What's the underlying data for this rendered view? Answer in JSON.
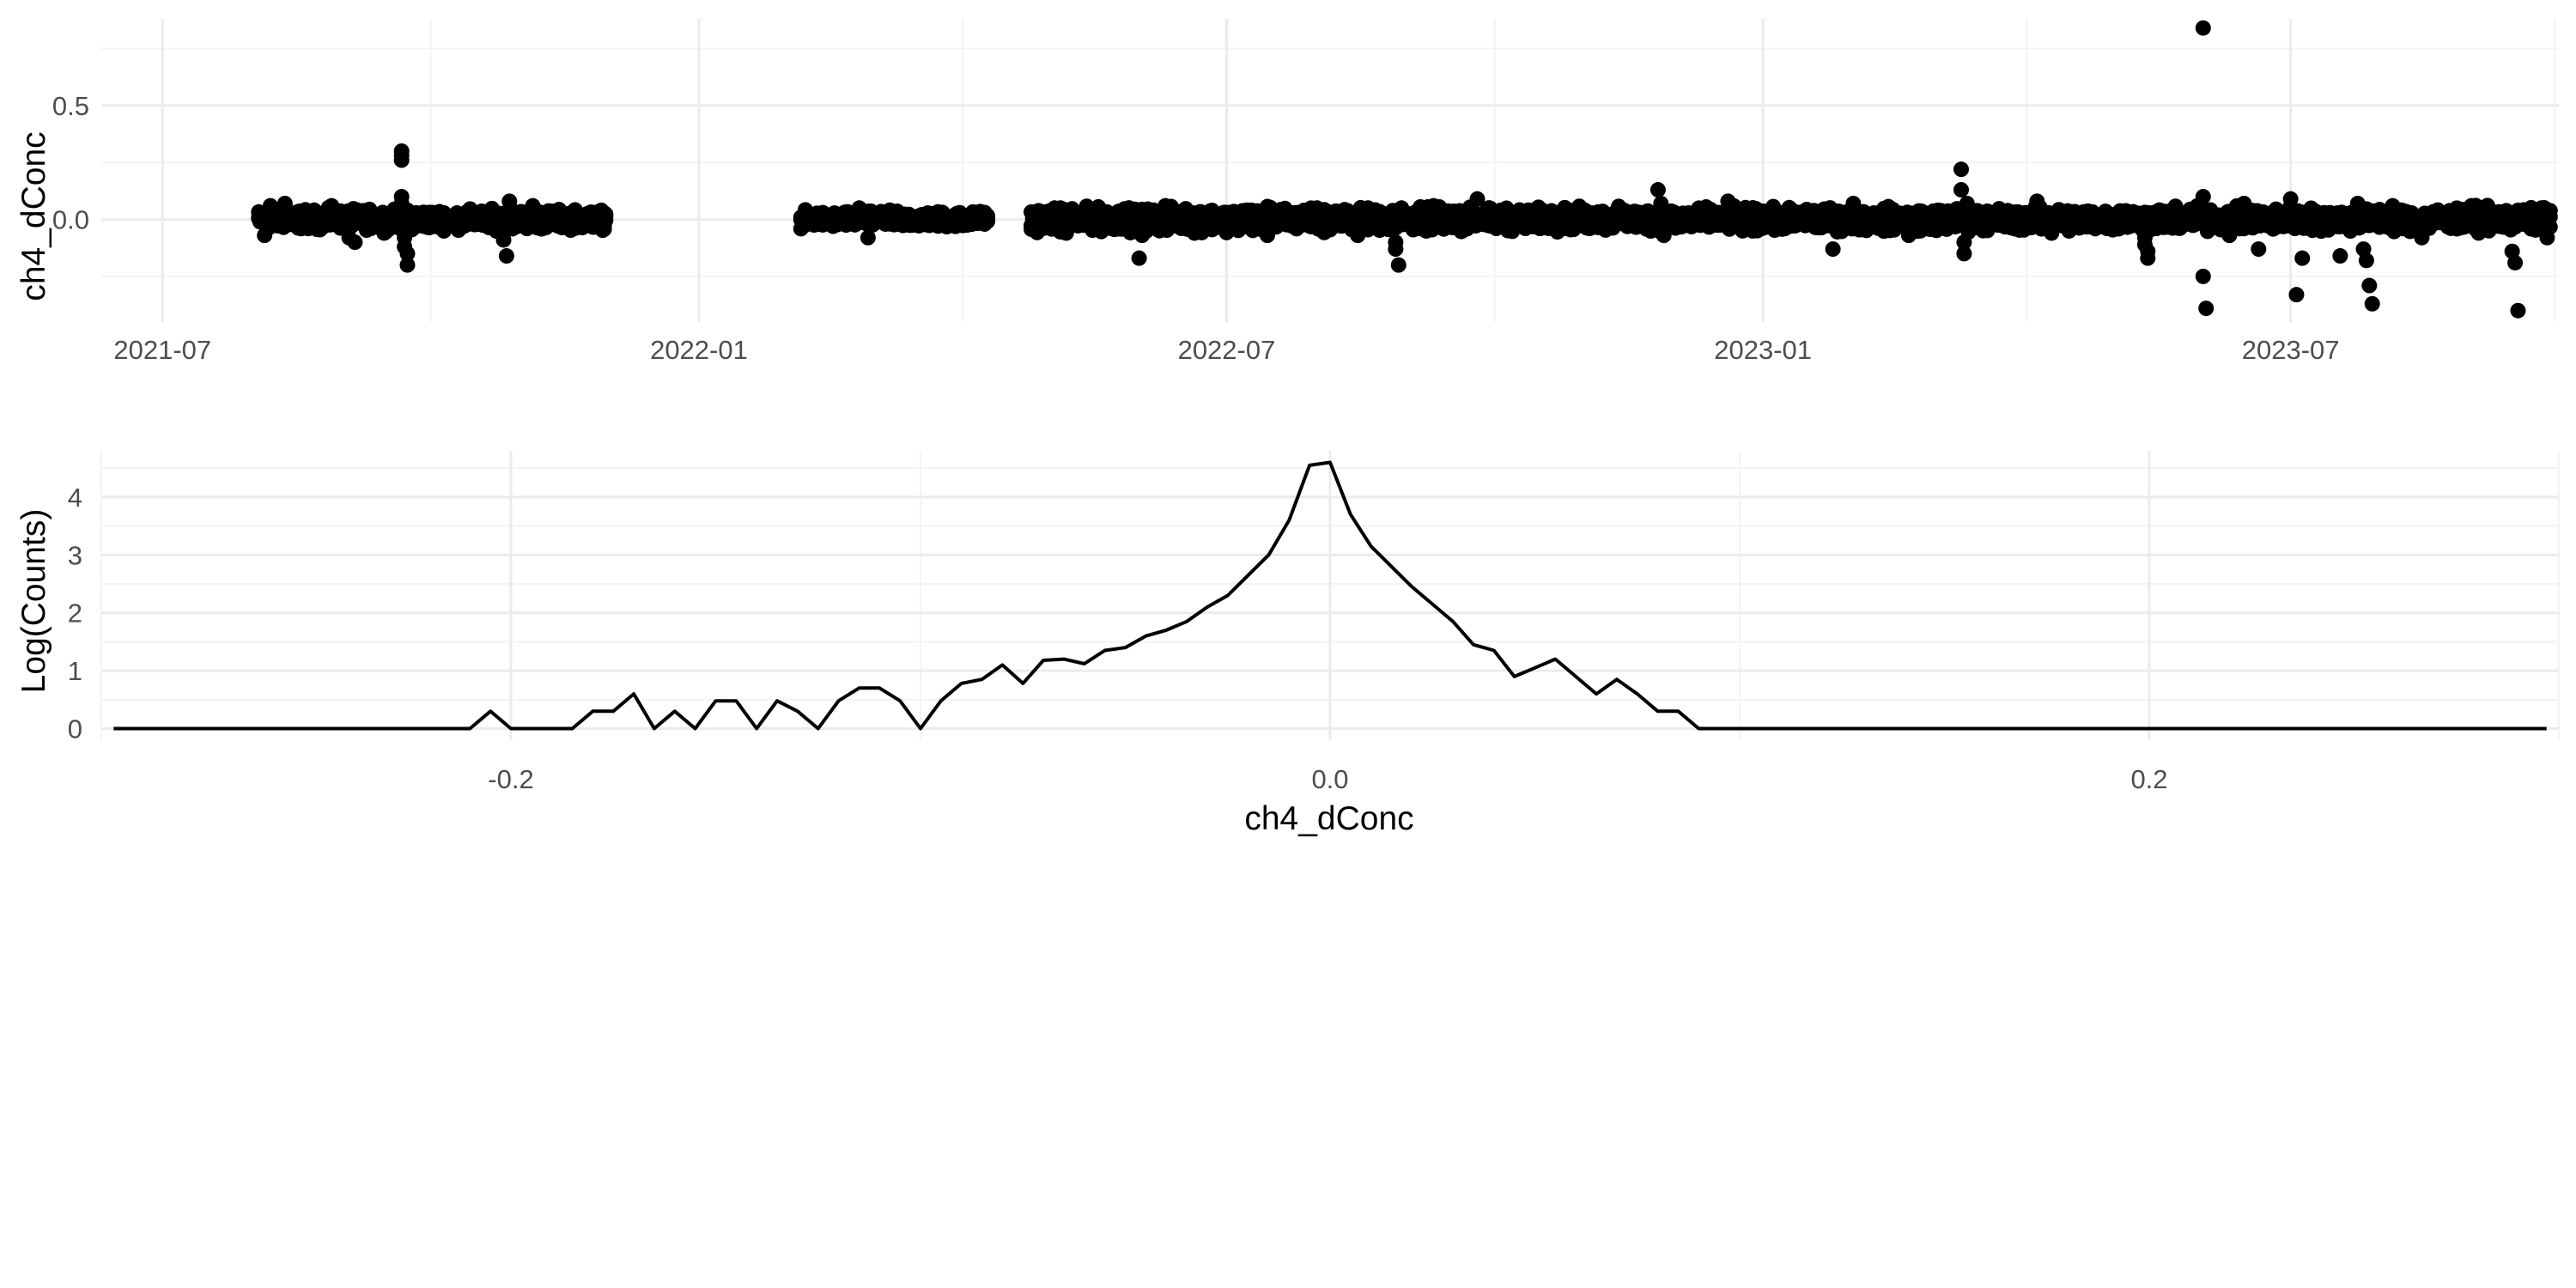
{
  "chart_data": [
    {
      "type": "scatter",
      "xlabel": "",
      "ylabel": "ch4_dConc",
      "x_is_date": true,
      "xlim": [
        "2021-06-10",
        "2023-10-01"
      ],
      "ylim": [
        -0.45,
        0.88
      ],
      "x_ticks": [
        "2021-07-01",
        "2022-01-01",
        "2022-07-01",
        "2023-01-01",
        "2023-07-01"
      ],
      "x_tick_labels": [
        "2021-07",
        "2022-01",
        "2022-07",
        "2023-01",
        "2023-07"
      ],
      "y_ticks": [
        0.0,
        0.5
      ],
      "y_tick_labels": [
        "0.0",
        "0.5"
      ],
      "grid": true,
      "segments": [
        {
          "start": "2021-08-03",
          "end": "2021-11-30",
          "spread": 0.03
        },
        {
          "start": "2022-02-05",
          "end": "2022-04-10",
          "spread": 0.025
        },
        {
          "start": "2022-04-25",
          "end": "2023-09-28",
          "spread": 0.035
        }
      ],
      "outliers": [
        {
          "x": "2021-08-05",
          "y": -0.07
        },
        {
          "x": "2021-08-07",
          "y": 0.06
        },
        {
          "x": "2021-08-12",
          "y": 0.07
        },
        {
          "x": "2021-08-28",
          "y": 0.06
        },
        {
          "x": "2021-09-03",
          "y": -0.08
        },
        {
          "x": "2021-09-05",
          "y": -0.1
        },
        {
          "x": "2021-09-15",
          "y": -0.06
        },
        {
          "x": "2021-09-21",
          "y": 0.3
        },
        {
          "x": "2021-09-21",
          "y": 0.28
        },
        {
          "x": "2021-09-21",
          "y": 0.26
        },
        {
          "x": "2021-09-21",
          "y": 0.1
        },
        {
          "x": "2021-09-21",
          "y": 0.07
        },
        {
          "x": "2021-09-22",
          "y": -0.08
        },
        {
          "x": "2021-09-22",
          "y": -0.12
        },
        {
          "x": "2021-09-23",
          "y": -0.15
        },
        {
          "x": "2021-09-23",
          "y": -0.2
        },
        {
          "x": "2021-10-26",
          "y": -0.09
        },
        {
          "x": "2021-10-27",
          "y": -0.16
        },
        {
          "x": "2021-10-28",
          "y": 0.08
        },
        {
          "x": "2021-11-05",
          "y": 0.06
        },
        {
          "x": "2022-02-25",
          "y": 0.05
        },
        {
          "x": "2022-02-28",
          "y": -0.08
        },
        {
          "x": "2022-05-05",
          "y": 0.05
        },
        {
          "x": "2022-05-07",
          "y": -0.06
        },
        {
          "x": "2022-06-01",
          "y": -0.17
        },
        {
          "x": "2022-06-02",
          "y": -0.07
        },
        {
          "x": "2022-06-10",
          "y": 0.06
        },
        {
          "x": "2022-06-20",
          "y": -0.06
        },
        {
          "x": "2022-07-15",
          "y": -0.07
        },
        {
          "x": "2022-08-01",
          "y": 0.05
        },
        {
          "x": "2022-08-15",
          "y": -0.07
        },
        {
          "x": "2022-08-28",
          "y": -0.1
        },
        {
          "x": "2022-08-28",
          "y": -0.13
        },
        {
          "x": "2022-08-29",
          "y": -0.2
        },
        {
          "x": "2022-08-30",
          "y": 0.05
        },
        {
          "x": "2022-09-10",
          "y": 0.06
        },
        {
          "x": "2022-09-25",
          "y": 0.09
        },
        {
          "x": "2022-10-25",
          "y": 0.05
        },
        {
          "x": "2022-11-26",
          "y": 0.13
        },
        {
          "x": "2022-11-27",
          "y": 0.07
        },
        {
          "x": "2022-11-28",
          "y": -0.07
        },
        {
          "x": "2022-12-20",
          "y": 0.08
        },
        {
          "x": "2022-12-25",
          "y": -0.05
        },
        {
          "x": "2023-01-25",
          "y": -0.13
        },
        {
          "x": "2023-02-01",
          "y": 0.07
        },
        {
          "x": "2023-02-20",
          "y": -0.07
        },
        {
          "x": "2023-03-10",
          "y": 0.22
        },
        {
          "x": "2023-03-10",
          "y": 0.13
        },
        {
          "x": "2023-03-11",
          "y": -0.1
        },
        {
          "x": "2023-03-11",
          "y": -0.15
        },
        {
          "x": "2023-03-12",
          "y": 0.07
        },
        {
          "x": "2023-04-05",
          "y": 0.08
        },
        {
          "x": "2023-04-10",
          "y": -0.06
        },
        {
          "x": "2023-05-12",
          "y": -0.08
        },
        {
          "x": "2023-05-12",
          "y": -0.11
        },
        {
          "x": "2023-05-13",
          "y": -0.14
        },
        {
          "x": "2023-05-13",
          "y": -0.17
        },
        {
          "x": "2023-05-30",
          "y": 0.06
        },
        {
          "x": "2023-06-01",
          "y": 0.84
        },
        {
          "x": "2023-06-01",
          "y": 0.1
        },
        {
          "x": "2023-06-01",
          "y": -0.25
        },
        {
          "x": "2023-06-02",
          "y": -0.39
        },
        {
          "x": "2023-06-10",
          "y": -0.07
        },
        {
          "x": "2023-06-15",
          "y": 0.07
        },
        {
          "x": "2023-06-20",
          "y": -0.13
        },
        {
          "x": "2023-07-01",
          "y": 0.09
        },
        {
          "x": "2023-07-03",
          "y": -0.33
        },
        {
          "x": "2023-07-05",
          "y": -0.17
        },
        {
          "x": "2023-07-18",
          "y": -0.16
        },
        {
          "x": "2023-07-24",
          "y": 0.07
        },
        {
          "x": "2023-07-26",
          "y": -0.13
        },
        {
          "x": "2023-07-27",
          "y": -0.18
        },
        {
          "x": "2023-07-28",
          "y": -0.29
        },
        {
          "x": "2023-07-29",
          "y": -0.37
        },
        {
          "x": "2023-08-05",
          "y": 0.06
        },
        {
          "x": "2023-08-15",
          "y": -0.08
        },
        {
          "x": "2023-09-01",
          "y": 0.06
        },
        {
          "x": "2023-09-15",
          "y": -0.14
        },
        {
          "x": "2023-09-16",
          "y": -0.19
        },
        {
          "x": "2023-09-17",
          "y": -0.4
        },
        {
          "x": "2023-09-25",
          "y": 0.05
        },
        {
          "x": "2023-09-27",
          "y": -0.08
        }
      ]
    },
    {
      "type": "line",
      "xlabel": "ch4_dConc",
      "ylabel": "Log(Counts)",
      "xlim": [
        -0.3,
        0.3
      ],
      "ylim": [
        -0.2,
        4.8
      ],
      "x_ticks": [
        -0.2,
        0.0,
        0.2
      ],
      "x_tick_labels": [
        "-0.2",
        "0.0",
        "0.2"
      ],
      "y_ticks": [
        0,
        1,
        2,
        3,
        4
      ],
      "y_tick_labels": [
        "0",
        "1",
        "2",
        "3",
        "4"
      ],
      "grid": true,
      "x": [
        -0.297,
        -0.21,
        -0.205,
        -0.2,
        -0.195,
        -0.19,
        -0.185,
        -0.18,
        -0.175,
        -0.17,
        -0.165,
        -0.16,
        -0.155,
        -0.15,
        -0.145,
        -0.14,
        -0.135,
        -0.13,
        -0.125,
        -0.12,
        -0.115,
        -0.11,
        -0.105,
        -0.1,
        -0.095,
        -0.09,
        -0.085,
        -0.08,
        -0.075,
        -0.07,
        -0.065,
        -0.06,
        -0.055,
        -0.05,
        -0.045,
        -0.04,
        -0.035,
        -0.03,
        -0.025,
        -0.02,
        -0.015,
        -0.01,
        -0.005,
        0.0,
        0.005,
        0.01,
        0.015,
        0.02,
        0.025,
        0.03,
        0.035,
        0.04,
        0.045,
        0.05,
        0.055,
        0.06,
        0.065,
        0.07,
        0.075,
        0.08,
        0.085,
        0.09,
        0.095,
        0.297
      ],
      "y": [
        0,
        0,
        0.3,
        0,
        0,
        0,
        0,
        0.3,
        0.3,
        0.6,
        0,
        0.3,
        0,
        0.48,
        0.48,
        0,
        0.48,
        0.3,
        0,
        0.48,
        0.7,
        0.7,
        0.48,
        0,
        0.48,
        0.78,
        0.85,
        1.1,
        0.78,
        1.18,
        1.2,
        1.12,
        1.35,
        1.4,
        1.6,
        1.7,
        1.85,
        2.1,
        2.3,
        2.65,
        3.0,
        3.6,
        4.55,
        4.6,
        3.7,
        3.15,
        2.8,
        2.45,
        2.15,
        1.85,
        1.45,
        1.35,
        0.9,
        1.05,
        1.2,
        0.9,
        0.6,
        0.85,
        0.6,
        0.3,
        0.3,
        0,
        0,
        0
      ]
    }
  ]
}
